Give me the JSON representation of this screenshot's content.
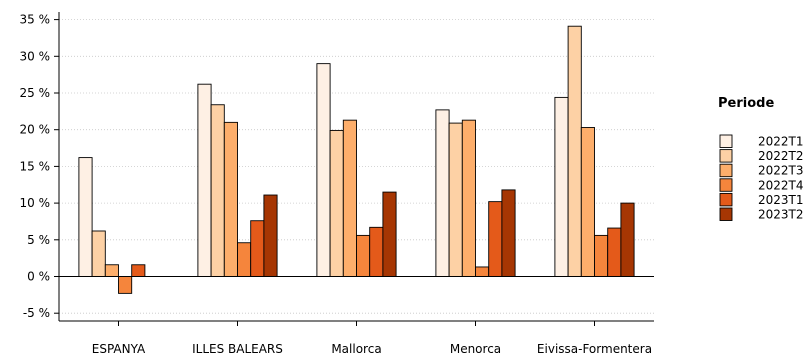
{
  "chart_data": {
    "type": "bar",
    "categories": [
      "ESPANYA",
      "ILLES BALEARS",
      "Mallorca",
      "Menorca",
      "Eivissa-Formentera"
    ],
    "series": [
      {
        "name": "2022T1",
        "color": "#FEF0E4",
        "values": [
          16.2,
          26.2,
          29.0,
          22.7,
          24.4
        ]
      },
      {
        "name": "2022T2",
        "color": "#FDD1A5",
        "values": [
          6.2,
          23.4,
          19.9,
          20.9,
          34.1
        ]
      },
      {
        "name": "2022T3",
        "color": "#FDAE6B",
        "values": [
          1.6,
          21.0,
          21.3,
          21.3,
          20.3
        ]
      },
      {
        "name": "2022T4",
        "color": "#F5853C",
        "values": [
          -2.3,
          4.6,
          5.6,
          1.3,
          5.6
        ]
      },
      {
        "name": "2023T1",
        "color": "#E45A1A",
        "values": [
          1.6,
          7.6,
          6.7,
          10.2,
          6.6
        ]
      },
      {
        "name": "2023T2",
        "color": "#A63603",
        "values": [
          null,
          11.1,
          11.5,
          11.8,
          10.0
        ]
      }
    ],
    "y_ticks": [
      "-5 %",
      "0 %",
      "5 %",
      "10 %",
      "15 %",
      "20 %",
      "25 %",
      "30 %",
      "35 %"
    ],
    "y_tick_values": [
      -5,
      0,
      5,
      10,
      15,
      20,
      25,
      30,
      35
    ],
    "ylim": [
      -6.2,
      36.5
    ],
    "grid": "horizontal dotted",
    "legend": {
      "title": "Periode",
      "placement": "right"
    },
    "title": "",
    "xlabel": "",
    "ylabel": ""
  }
}
